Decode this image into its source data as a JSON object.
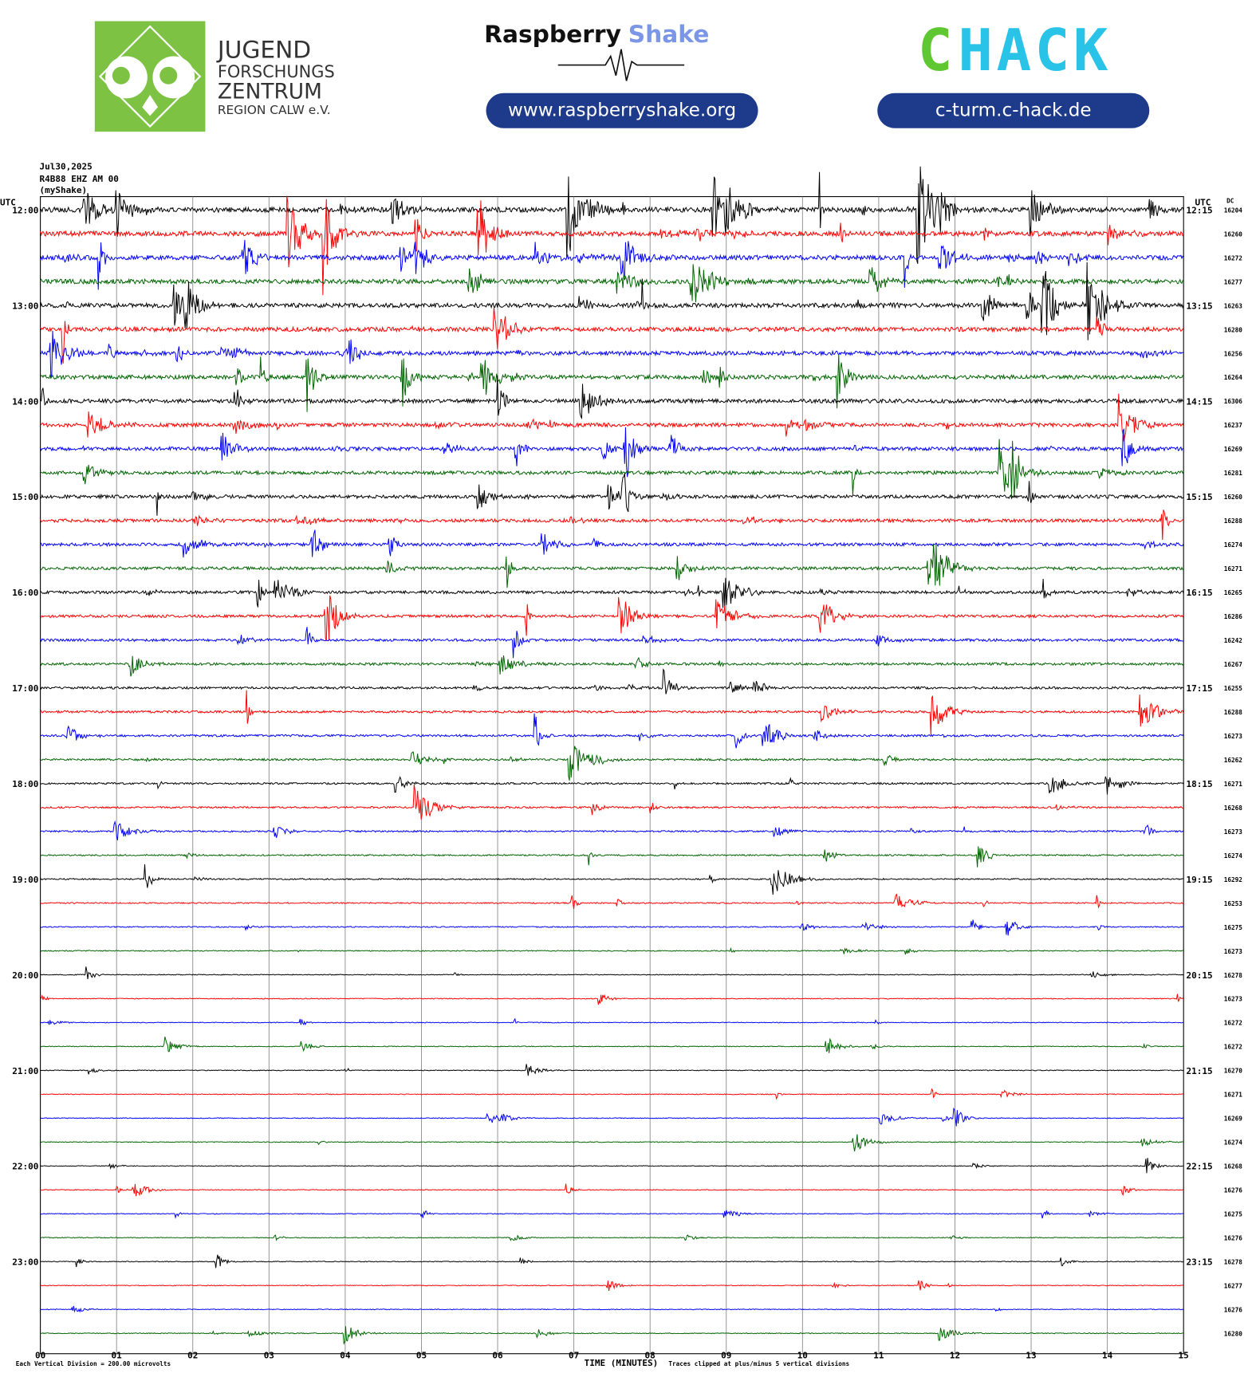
{
  "header": {
    "jfz": [
      "JUGEND",
      "FORSCHUNGS",
      "ZENTRUM",
      "REGION CALW e.V."
    ],
    "rs_name": [
      "Raspberry",
      "Shake"
    ],
    "rs_url": "www.raspberryshake.org",
    "chack_logo": [
      "C",
      "HACK"
    ],
    "chack_url": "c-turm.c-hack.de"
  },
  "plot": {
    "date": "Jul30,2025",
    "station": "R4B88 EHZ AM 00",
    "network": "(myShake)",
    "left_unit": "UTC",
    "right_unit": "UTC",
    "dc_label": "DC",
    "left_times": [
      "12:00",
      "13:00",
      "14:00",
      "15:00",
      "16:00",
      "17:00",
      "18:00",
      "19:00",
      "20:00",
      "21:00",
      "22:00",
      "23:00"
    ],
    "right_times": [
      "12:15",
      "13:15",
      "14:15",
      "15:15",
      "16:15",
      "17:15",
      "18:15",
      "19:15",
      "20:15",
      "21:15",
      "22:15",
      "23:15"
    ],
    "dc_values": [
      16204,
      16260,
      16272,
      16277,
      16263,
      16280,
      16256,
      16264,
      16306,
      16237,
      16269,
      16281,
      16260,
      16288,
      16274,
      16271,
      16265,
      16286,
      16242,
      16267,
      16255,
      16288,
      16273,
      16262,
      16271,
      16268,
      16273,
      16274,
      16292,
      16253,
      16275,
      16273,
      16278,
      16273,
      16272,
      16272,
      16270,
      16271,
      16269,
      16274,
      16268,
      16276,
      16275,
      16276,
      16278,
      16277,
      16276,
      16280
    ],
    "x_ticks": [
      "00",
      "01",
      "02",
      "03",
      "04",
      "05",
      "06",
      "07",
      "08",
      "09",
      "10",
      "11",
      "12",
      "13",
      "14",
      "15"
    ],
    "x_label": "TIME (MINUTES)",
    "trace_colors": [
      "#000000",
      "#ff0000",
      "#0000ff",
      "#006400"
    ]
  },
  "footer": {
    "scale": "Each Vertical Division =  200.00 microvolts",
    "clip": "Traces clipped at plus/minus 5 vertical divisions"
  }
}
